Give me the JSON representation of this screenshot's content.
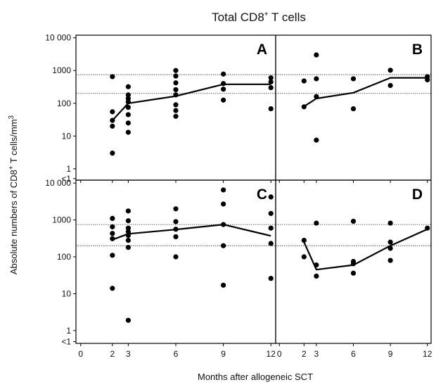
{
  "chart_data": {
    "type": "scatter",
    "title": "Total CD8",
    "title_superscript": "+",
    "title_suffix": " T cells",
    "ylabel": "Absolute numbers of CD8",
    "ylabel_superscript": "+",
    "ylabel_suffix": " T cells/mm",
    "ylabel_power": "3",
    "xlabel": "Months after allogeneic SCT",
    "x_ticks": [
      0,
      2,
      3,
      6,
      9,
      12
    ],
    "x_tick_labels": [
      "0",
      "2",
      "3",
      "6",
      "9",
      "12"
    ],
    "y_scale": "log",
    "y_ticks": [
      0.5,
      1,
      10,
      100,
      1000,
      10000
    ],
    "y_tick_labels": [
      "<1",
      "1",
      "10",
      "100",
      "1000",
      "10 000"
    ],
    "ylim": [
      0.45,
      12000
    ],
    "xlim": [
      -0.3,
      12.3
    ],
    "reference_lines": [
      200,
      750
    ],
    "panels": [
      {
        "label": "A",
        "points": [
          [
            2,
            650
          ],
          [
            2,
            55
          ],
          [
            2,
            30
          ],
          [
            2,
            20
          ],
          [
            2,
            3
          ],
          [
            3,
            320
          ],
          [
            3,
            180
          ],
          [
            3,
            140
          ],
          [
            3,
            110
          ],
          [
            3,
            75
          ],
          [
            3,
            45
          ],
          [
            3,
            25
          ],
          [
            3,
            13
          ],
          [
            6,
            1000
          ],
          [
            6,
            680
          ],
          [
            6,
            420
          ],
          [
            6,
            260
          ],
          [
            6,
            180
          ],
          [
            6,
            90
          ],
          [
            6,
            60
          ],
          [
            6,
            40
          ],
          [
            9,
            780
          ],
          [
            9,
            400
          ],
          [
            9,
            270
          ],
          [
            9,
            125
          ],
          [
            12,
            600
          ],
          [
            12,
            450
          ],
          [
            12,
            300
          ],
          [
            12,
            68
          ]
        ],
        "median": [
          [
            2,
            30
          ],
          [
            3,
            100
          ],
          [
            6,
            165
          ],
          [
            9,
            380
          ],
          [
            12,
            380
          ]
        ]
      },
      {
        "label": "B",
        "points": [
          [
            2,
            480
          ],
          [
            2,
            78
          ],
          [
            3,
            3000
          ],
          [
            3,
            560
          ],
          [
            3,
            160
          ],
          [
            3,
            7.5
          ],
          [
            6,
            560
          ],
          [
            6,
            68
          ],
          [
            9,
            1020
          ],
          [
            9,
            350
          ],
          [
            12,
            650
          ],
          [
            12,
            520
          ]
        ],
        "median": [
          [
            2,
            80
          ],
          [
            3,
            140
          ],
          [
            6,
            210
          ],
          [
            9,
            600
          ],
          [
            12,
            600
          ]
        ]
      },
      {
        "label": "C",
        "points": [
          [
            2,
            1100
          ],
          [
            2,
            650
          ],
          [
            2,
            430
          ],
          [
            2,
            310
          ],
          [
            2,
            110
          ],
          [
            2,
            14
          ],
          [
            3,
            1750
          ],
          [
            3,
            950
          ],
          [
            3,
            600
          ],
          [
            3,
            480
          ],
          [
            3,
            380
          ],
          [
            3,
            280
          ],
          [
            3,
            180
          ],
          [
            3,
            1.9
          ],
          [
            6,
            2000
          ],
          [
            6,
            900
          ],
          [
            6,
            560
          ],
          [
            6,
            350
          ],
          [
            6,
            100
          ],
          [
            9,
            6500
          ],
          [
            9,
            2700
          ],
          [
            9,
            750
          ],
          [
            9,
            200
          ],
          [
            9,
            17
          ],
          [
            12,
            4200
          ],
          [
            12,
            1500
          ],
          [
            12,
            600
          ],
          [
            12,
            230
          ],
          [
            12,
            26
          ]
        ],
        "median": [
          [
            2,
            290
          ],
          [
            3,
            420
          ],
          [
            6,
            550
          ],
          [
            9,
            750
          ],
          [
            12,
            370
          ]
        ]
      },
      {
        "label": "D",
        "points": [
          [
            2,
            280
          ],
          [
            2,
            100
          ],
          [
            3,
            820
          ],
          [
            3,
            60
          ],
          [
            3,
            30
          ],
          [
            6,
            920
          ],
          [
            6,
            75
          ],
          [
            6,
            65
          ],
          [
            6,
            36
          ],
          [
            9,
            820
          ],
          [
            9,
            250
          ],
          [
            9,
            170
          ],
          [
            9,
            80
          ],
          [
            12,
            600
          ]
        ],
        "median": [
          [
            2,
            250
          ],
          [
            3,
            45
          ],
          [
            6,
            60
          ],
          [
            9,
            200
          ],
          [
            12,
            560
          ]
        ]
      }
    ]
  }
}
